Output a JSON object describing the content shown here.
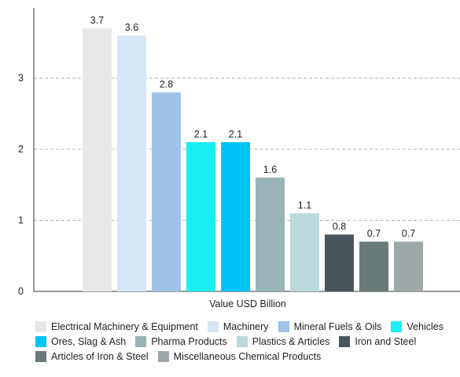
{
  "chart_data": {
    "type": "bar",
    "xlabel": "Value USD Billion",
    "ylabel": "",
    "ylim": [
      0,
      4
    ],
    "yticks": [
      0,
      1,
      2,
      3
    ],
    "grid": true,
    "legend_position": "bottom",
    "series": [
      {
        "name": "Electrical Machinery & Equipment",
        "value": 3.7,
        "label": "3.7",
        "color": "#e8e8e8"
      },
      {
        "name": "Machinery",
        "value": 3.6,
        "label": "3.6",
        "color": "#d6e6f6"
      },
      {
        "name": "Mineral Fuels & Oils",
        "value": 2.8,
        "label": "2.8",
        "color": "#9fc3e6"
      },
      {
        "name": "Vehicles",
        "value": 2.1,
        "label": "2.1",
        "color": "#1aeef5"
      },
      {
        "name": "Ores, Slag & Ash",
        "value": 2.1,
        "label": "2.1",
        "color": "#00c4f5"
      },
      {
        "name": "Pharma Products",
        "value": 1.6,
        "label": "1.6",
        "color": "#98b4b6"
      },
      {
        "name": "Plastics & Articles",
        "value": 1.1,
        "label": "1.1",
        "color": "#bcd9db"
      },
      {
        "name": "Iron and Steel",
        "value": 0.8,
        "label": "0.8",
        "color": "#48555a"
      },
      {
        "name": "Articles of Iron & Steel",
        "value": 0.7,
        "label": "0.7",
        "color": "#6a7a78"
      },
      {
        "name": "Miscellaneous Chemical Products",
        "value": 0.7,
        "label": "0.7",
        "color": "#9ea8a8"
      }
    ]
  }
}
